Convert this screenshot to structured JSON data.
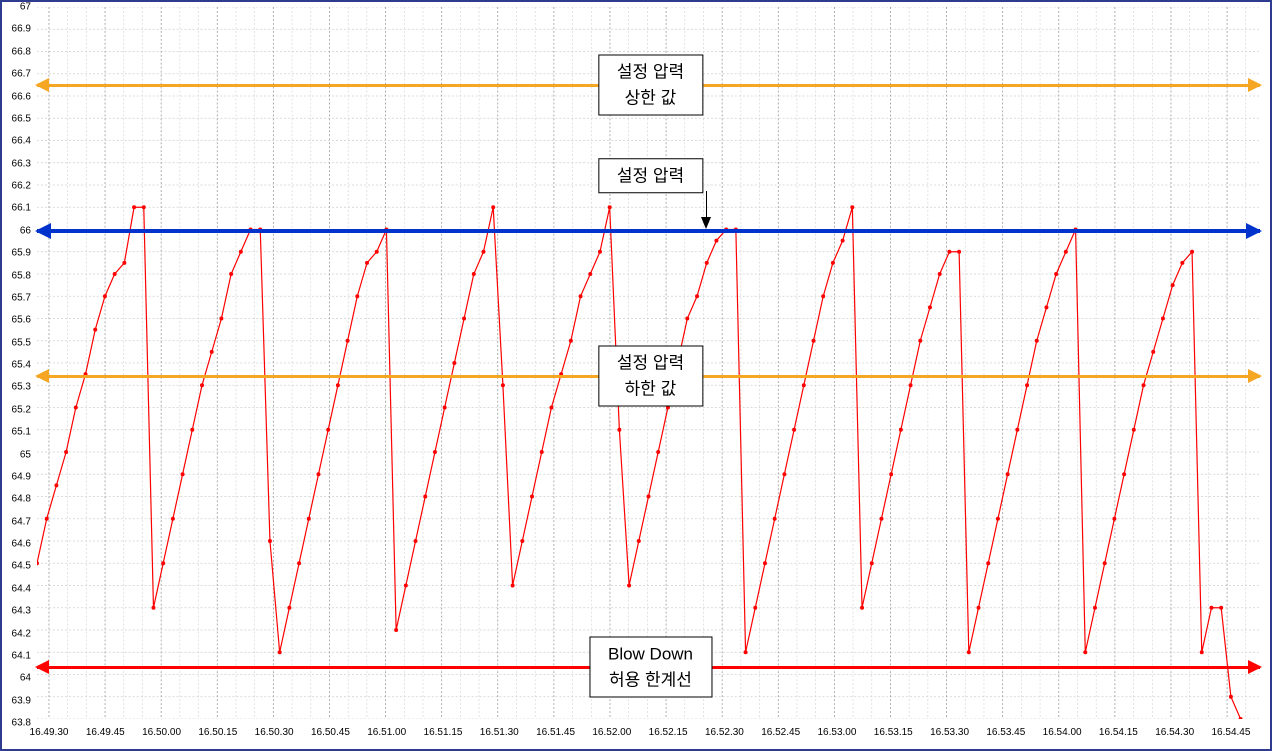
{
  "chart": {
    "type": "line",
    "ylim": [
      63.8,
      67.0
    ],
    "ytick_step": 0.1,
    "yticks": [
      67,
      66.9,
      66.8,
      66.7,
      66.6,
      66.5,
      66.4,
      66.3,
      66.2,
      66.1,
      66,
      65.9,
      65.8,
      65.7,
      65.6,
      65.5,
      65.4,
      65.3,
      65.2,
      65.1,
      65,
      64.9,
      64.8,
      64.7,
      64.6,
      64.5,
      64.4,
      64.3,
      64.2,
      64.1,
      64,
      63.9,
      63.8
    ],
    "xticks": [
      "16.49.30",
      "16.49.45",
      "16.50.00",
      "16.50.15",
      "16.50.30",
      "16.50.45",
      "16.51.00",
      "16.51.15",
      "16.51.30",
      "16.51.45",
      "16.52.00",
      "16.52.15",
      "16.52.30",
      "16.52.45",
      "16.53.00",
      "16.53.15",
      "16.53.30",
      "16.53.45",
      "16.54.00",
      "16.54.15",
      "16.54.30",
      "16.54.45"
    ],
    "x_minor_per_major": 3,
    "series_color": "#ff0000",
    "marker_color": "#ff0000",
    "marker_size": 2,
    "line_width": 1.2,
    "background_color": "#ffffff",
    "grid_major_color": "#9a9a9a",
    "grid_minor_color": "#cfcfcf",
    "grid_dash": "2,2",
    "border_color": "#2e3b8f",
    "data": [
      [
        0,
        64.5
      ],
      [
        1,
        64.7
      ],
      [
        2,
        64.85
      ],
      [
        3,
        65.0
      ],
      [
        4,
        65.2
      ],
      [
        5,
        65.35
      ],
      [
        6,
        65.55
      ],
      [
        7,
        65.7
      ],
      [
        8,
        65.8
      ],
      [
        9,
        65.85
      ],
      [
        10,
        66.1
      ],
      [
        11,
        66.1
      ],
      [
        12,
        64.3
      ],
      [
        13,
        64.5
      ],
      [
        14,
        64.7
      ],
      [
        15,
        64.9
      ],
      [
        16,
        65.1
      ],
      [
        17,
        65.3
      ],
      [
        18,
        65.45
      ],
      [
        19,
        65.6
      ],
      [
        20,
        65.8
      ],
      [
        21,
        65.9
      ],
      [
        22,
        66.0
      ],
      [
        23,
        66.0
      ],
      [
        24,
        64.6
      ],
      [
        25,
        64.1
      ],
      [
        26,
        64.3
      ],
      [
        27,
        64.5
      ],
      [
        28,
        64.7
      ],
      [
        29,
        64.9
      ],
      [
        30,
        65.1
      ],
      [
        31,
        65.3
      ],
      [
        32,
        65.5
      ],
      [
        33,
        65.7
      ],
      [
        34,
        65.85
      ],
      [
        35,
        65.9
      ],
      [
        36,
        66.0
      ],
      [
        37,
        64.2
      ],
      [
        38,
        64.4
      ],
      [
        39,
        64.6
      ],
      [
        40,
        64.8
      ],
      [
        41,
        65.0
      ],
      [
        42,
        65.2
      ],
      [
        43,
        65.4
      ],
      [
        44,
        65.6
      ],
      [
        45,
        65.8
      ],
      [
        46,
        65.9
      ],
      [
        47,
        66.1
      ],
      [
        48,
        65.3
      ],
      [
        49,
        64.4
      ],
      [
        50,
        64.6
      ],
      [
        51,
        64.8
      ],
      [
        52,
        65.0
      ],
      [
        53,
        65.2
      ],
      [
        54,
        65.35
      ],
      [
        55,
        65.5
      ],
      [
        56,
        65.7
      ],
      [
        57,
        65.8
      ],
      [
        58,
        65.9
      ],
      [
        59,
        66.1
      ],
      [
        60,
        65.1
      ],
      [
        61,
        64.4
      ],
      [
        62,
        64.6
      ],
      [
        63,
        64.8
      ],
      [
        64,
        65.0
      ],
      [
        65,
        65.2
      ],
      [
        66,
        65.4
      ],
      [
        67,
        65.6
      ],
      [
        68,
        65.7
      ],
      [
        69,
        65.85
      ],
      [
        70,
        65.95
      ],
      [
        71,
        66.0
      ],
      [
        72,
        66.0
      ],
      [
        73,
        64.1
      ],
      [
        74,
        64.3
      ],
      [
        75,
        64.5
      ],
      [
        76,
        64.7
      ],
      [
        77,
        64.9
      ],
      [
        78,
        65.1
      ],
      [
        79,
        65.3
      ],
      [
        80,
        65.5
      ],
      [
        81,
        65.7
      ],
      [
        82,
        65.85
      ],
      [
        83,
        65.95
      ],
      [
        84,
        66.1
      ],
      [
        85,
        64.3
      ],
      [
        86,
        64.5
      ],
      [
        87,
        64.7
      ],
      [
        88,
        64.9
      ],
      [
        89,
        65.1
      ],
      [
        90,
        65.3
      ],
      [
        91,
        65.5
      ],
      [
        92,
        65.65
      ],
      [
        93,
        65.8
      ],
      [
        94,
        65.9
      ],
      [
        95,
        65.9
      ],
      [
        96,
        64.1
      ],
      [
        97,
        64.3
      ],
      [
        98,
        64.5
      ],
      [
        99,
        64.7
      ],
      [
        100,
        64.9
      ],
      [
        101,
        65.1
      ],
      [
        102,
        65.3
      ],
      [
        103,
        65.5
      ],
      [
        104,
        65.65
      ],
      [
        105,
        65.8
      ],
      [
        106,
        65.9
      ],
      [
        107,
        66.0
      ],
      [
        108,
        64.1
      ],
      [
        109,
        64.3
      ],
      [
        110,
        64.5
      ],
      [
        111,
        64.7
      ],
      [
        112,
        64.9
      ],
      [
        113,
        65.1
      ],
      [
        114,
        65.3
      ],
      [
        115,
        65.45
      ],
      [
        116,
        65.6
      ],
      [
        117,
        65.75
      ],
      [
        118,
        65.85
      ],
      [
        119,
        65.9
      ],
      [
        120,
        64.1
      ],
      [
        121,
        64.3
      ],
      [
        122,
        64.3
      ],
      [
        123,
        63.9
      ],
      [
        124,
        63.8
      ]
    ],
    "x_data_max": 126
  },
  "reference_lines": {
    "upper_limit": {
      "value": 66.65,
      "color": "#f5a623",
      "label_line1": "설정 압력",
      "label_line2": "상한 값"
    },
    "set_pressure": {
      "value": 66.0,
      "color": "#0033cc",
      "label": "설정 압력"
    },
    "lower_limit": {
      "value": 65.35,
      "color": "#f5a623",
      "label_line1": "설정 압력",
      "label_line2": "하한 값"
    },
    "blowdown_limit": {
      "value": 64.05,
      "color": "#ff0000",
      "label_line1": "Blow Down",
      "label_line2": "허용 한계선"
    }
  },
  "label_fontsize": 17,
  "axis_fontsize": 10
}
